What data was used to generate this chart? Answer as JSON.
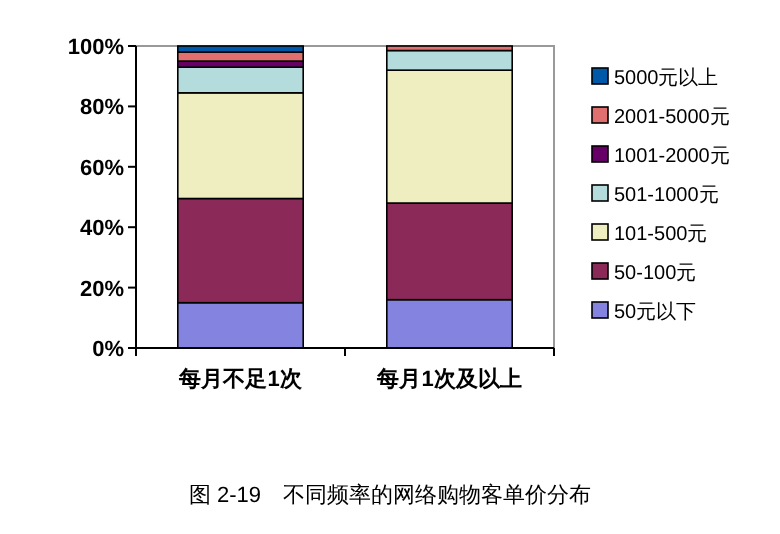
{
  "chart_data": {
    "type": "bar",
    "stacked": true,
    "title": "图 2-19　不同频率的网络购物客单价分布",
    "categories": [
      "每月不足1次",
      "每月1次及以上"
    ],
    "series": [
      {
        "name": "50元以下",
        "color": "#8484e0",
        "values": [
          15,
          16
        ]
      },
      {
        "name": "50-100元",
        "color": "#8b2a58",
        "values": [
          34.5,
          32
        ]
      },
      {
        "name": "101-500元",
        "color": "#eeeec0",
        "values": [
          35,
          44
        ]
      },
      {
        "name": "501-1000元",
        "color": "#b4dcdc",
        "values": [
          8.5,
          6.5
        ]
      },
      {
        "name": "1001-2000元",
        "color": "#660066",
        "values": [
          2,
          null
        ]
      },
      {
        "name": "2001-5000元",
        "color": "#e07070",
        "values": [
          3,
          1.5
        ]
      },
      {
        "name": "5000元以上",
        "color": "#0058a8",
        "values": [
          2,
          null
        ]
      }
    ],
    "ylim": [
      0,
      100
    ],
    "yticks": [
      {
        "value": 0,
        "label": "0%"
      },
      {
        "value": 20,
        "label": "20%"
      },
      {
        "value": 40,
        "label": "40%"
      },
      {
        "value": 60,
        "label": "60%"
      },
      {
        "value": 80,
        "label": "80%"
      },
      {
        "value": 100,
        "label": "100%"
      }
    ],
    "grid": false,
    "legend": "right"
  }
}
